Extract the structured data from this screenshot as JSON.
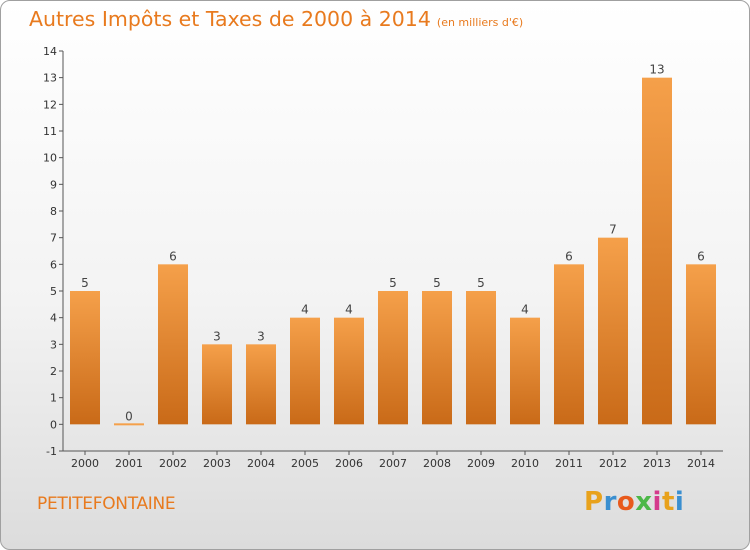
{
  "chart_data": {
    "type": "bar",
    "title": "Autres Impôts et Taxes de 2000 à 2014",
    "subtitle": "(en milliers d'€)",
    "categories": [
      "2000",
      "2001",
      "2002",
      "2003",
      "2004",
      "2005",
      "2006",
      "2007",
      "2008",
      "2009",
      "2010",
      "2011",
      "2012",
      "2013",
      "2014"
    ],
    "values": [
      5,
      0,
      6,
      3,
      3,
      4,
      4,
      5,
      5,
      5,
      4,
      6,
      7,
      13,
      6
    ],
    "y_ticks": [
      "-1",
      "0",
      "1",
      "2",
      "3",
      "4",
      "5",
      "6",
      "7",
      "8",
      "9",
      "10",
      "11",
      "12",
      "13",
      "14"
    ],
    "ylim": [
      -1,
      14
    ],
    "grid": false,
    "bar_color": "#f5a04a",
    "bar_color_dark": "#c96a18"
  },
  "footer": {
    "commune": "PETITEFONTAINE",
    "brand": [
      "P",
      "r",
      "o",
      "x",
      "i",
      "t",
      "i"
    ],
    "brand_colors": [
      "#e8a21c",
      "#3a8fd0",
      "#e85a1c",
      "#4cb848",
      "#d43a8c",
      "#e8a21c",
      "#3a8fd0"
    ]
  }
}
